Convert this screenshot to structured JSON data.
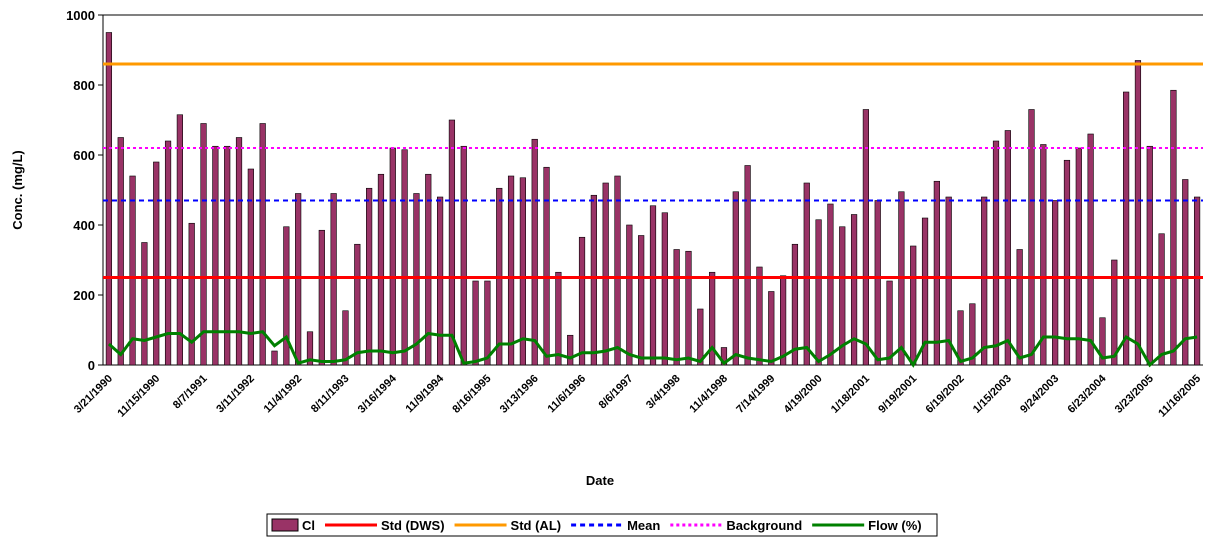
{
  "chart_data": {
    "type": "bar-line",
    "x_label": "Date",
    "y_label": "Conc. (mg/L)",
    "ylim": [
      0,
      1000
    ],
    "yticks": [
      0,
      200,
      400,
      600,
      800,
      1000
    ],
    "grid": false,
    "categories": [
      "3/21/1990",
      null,
      null,
      null,
      "11/15/1990",
      null,
      null,
      null,
      "8/7/1991",
      null,
      null,
      null,
      "3/11/1992",
      null,
      null,
      null,
      "11/4/1992",
      null,
      null,
      null,
      "8/11/1993",
      null,
      null,
      null,
      "3/16/1994",
      null,
      null,
      null,
      "11/9/1994",
      null,
      null,
      null,
      "8/16/1995",
      null,
      null,
      null,
      "3/13/1996",
      null,
      null,
      null,
      "11/6/1996",
      null,
      null,
      null,
      "8/6/1997",
      null,
      null,
      null,
      "3/4/1998",
      null,
      null,
      null,
      "11/4/1998",
      null,
      null,
      null,
      "7/14/1999",
      null,
      null,
      null,
      "4/19/2000",
      null,
      null,
      null,
      "1/18/2001",
      null,
      null,
      null,
      "9/19/2001",
      null,
      null,
      null,
      "6/19/2002",
      null,
      null,
      null,
      "1/15/2003",
      null,
      null,
      null,
      "9/24/2003",
      null,
      null,
      null,
      "6/23/2004",
      null,
      null,
      null,
      "3/23/2005",
      null,
      null,
      null,
      "11/16/2005"
    ],
    "series": [
      {
        "name": "Cl",
        "type": "bar",
        "color": "#993366",
        "values": [
          950,
          650,
          540,
          350,
          580,
          640,
          715,
          405,
          690,
          625,
          625,
          650,
          560,
          690,
          40,
          395,
          490,
          95,
          385,
          490,
          155,
          345,
          505,
          545,
          620,
          615,
          490,
          545,
          480,
          700,
          625,
          240,
          240,
          505,
          540,
          535,
          645,
          565,
          265,
          85,
          365,
          485,
          520,
          540,
          400,
          370,
          455,
          435,
          330,
          325,
          160,
          265,
          50,
          495,
          570,
          280,
          210,
          255,
          345,
          520,
          415,
          460,
          395,
          430,
          730,
          470,
          240,
          495,
          340,
          420,
          525,
          480,
          155,
          175,
          480,
          640,
          670,
          330,
          730,
          630,
          470,
          585,
          620,
          660,
          135,
          300,
          780,
          870,
          625,
          375,
          785,
          530,
          480
        ]
      },
      {
        "name": "Flow (%)",
        "type": "line",
        "color": "#008000",
        "values": [
          60,
          30,
          75,
          70,
          80,
          90,
          90,
          65,
          95,
          95,
          95,
          95,
          90,
          95,
          55,
          80,
          5,
          15,
          10,
          10,
          15,
          35,
          40,
          40,
          35,
          40,
          60,
          90,
          85,
          85,
          5,
          10,
          20,
          60,
          60,
          75,
          70,
          25,
          30,
          20,
          35,
          35,
          40,
          50,
          30,
          20,
          20,
          20,
          15,
          20,
          10,
          50,
          5,
          30,
          20,
          15,
          10,
          25,
          45,
          50,
          10,
          30,
          55,
          75,
          60,
          15,
          20,
          50,
          0,
          65,
          65,
          70,
          10,
          20,
          50,
          55,
          70,
          20,
          30,
          80,
          80,
          75,
          75,
          70,
          20,
          25,
          80,
          60,
          0,
          30,
          40,
          75,
          80
        ]
      }
    ],
    "reference_lines": [
      {
        "name": "Std (DWS)",
        "value": 250,
        "color": "#ff0000",
        "style": "solid"
      },
      {
        "name": "Std (AL)",
        "value": 860,
        "color": "#ff9900",
        "style": "solid"
      },
      {
        "name": "Mean",
        "value": 470,
        "color": "#0000ff",
        "style": "dashed"
      },
      {
        "name": "Background",
        "value": 620,
        "color": "#ff00ff",
        "style": "dotted"
      }
    ]
  }
}
